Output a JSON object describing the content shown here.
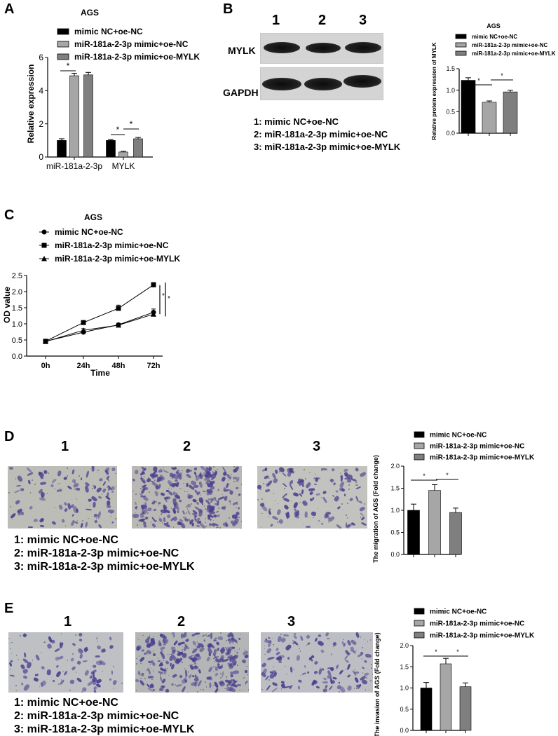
{
  "panels": {
    "a": {
      "letter": "A"
    },
    "b": {
      "letter": "B",
      "lanes": [
        "1",
        "2",
        "3"
      ],
      "row_labels": [
        "MYLK",
        "GAPDH"
      ],
      "key": [
        "1:  mimic NC+oe-NC",
        "2:  miR-181a-2-3p mimic+oe-NC",
        "3:  miR-181a-2-3p mimic+oe-MYLK"
      ]
    },
    "c": {
      "letter": "C"
    },
    "d": {
      "letter": "D",
      "images": [
        "1",
        "2",
        "3"
      ],
      "key": [
        "1:  mimic NC+oe-NC",
        "2:  miR-181a-2-3p mimic+oe-NC",
        "3:  miR-181a-2-3p mimic+oe-MYLK"
      ]
    },
    "e": {
      "letter": "E",
      "images": [
        "1",
        "2",
        "3"
      ],
      "key": [
        "1:  mimic NC+oe-NC",
        "2:  miR-181a-2-3p mimic+oe-NC",
        "3:  miR-181a-2-3p mimic+oe-MYLK"
      ]
    }
  },
  "colors": {
    "group1": "#000000",
    "group2": "#a6a6a6",
    "group3": "#7f7f7f",
    "stain": "#4a3f8f"
  },
  "chart_data": [
    {
      "id": "A",
      "type": "bar",
      "title": "AGS",
      "xlabel": "",
      "ylabel": "Relative expression",
      "categories": [
        "miR-181a-2-3p",
        "MYLK"
      ],
      "ylim": [
        0,
        6
      ],
      "yticks": [
        0,
        2,
        4,
        6
      ],
      "series": [
        {
          "name": "mimic NC+oe-NC",
          "values": [
            1.0,
            1.0
          ],
          "errors": [
            0.1,
            0.06
          ]
        },
        {
          "name": "miR-181a-2-3p mimic+oe-NC",
          "values": [
            4.9,
            0.3
          ],
          "errors": [
            0.15,
            0.05
          ]
        },
        {
          "name": "miR-181a-2-3p mimic+oe-MYLK",
          "values": [
            4.95,
            1.1
          ],
          "errors": [
            0.15,
            0.08
          ]
        }
      ],
      "significance": [
        "*",
        "*",
        "*"
      ],
      "legend": "top"
    },
    {
      "id": "B",
      "type": "bar",
      "title": "AGS",
      "xlabel": "",
      "ylabel": "Relative protein expression of MYLK",
      "categories": [
        ""
      ],
      "ylim": [
        0,
        1.5
      ],
      "yticks": [
        0.0,
        0.5,
        1.0,
        1.5
      ],
      "series": [
        {
          "name": "mimic NC+oe-NC",
          "values": [
            1.23
          ],
          "errors": [
            0.06
          ]
        },
        {
          "name": "miR-181a-2-3p mimic+oe-NC",
          "values": [
            0.72
          ],
          "errors": [
            0.03
          ]
        },
        {
          "name": "miR-181a-2-3p mimic+oe-MYLK",
          "values": [
            0.96
          ],
          "errors": [
            0.04
          ]
        }
      ],
      "significance": [
        "*",
        "*"
      ],
      "legend": "top"
    },
    {
      "id": "C",
      "type": "line",
      "title": "AGS",
      "xlabel": "Time",
      "ylabel": "OD value",
      "x": [
        "0h",
        "24h",
        "48h",
        "72h"
      ],
      "ylim": [
        0,
        2.5
      ],
      "yticks": [
        0.0,
        0.5,
        1.0,
        1.5,
        2.0,
        2.5
      ],
      "series": [
        {
          "name": "mimic NC+oe-NC",
          "marker": "circle",
          "values": [
            0.46,
            0.74,
            0.97,
            1.36
          ],
          "errors": [
            0.03,
            0.04,
            0.05,
            0.1
          ]
        },
        {
          "name": "miR-181a-2-3p mimic+oe-NC",
          "marker": "square",
          "values": [
            0.46,
            1.04,
            1.48,
            2.21
          ],
          "errors": [
            0.03,
            0.05,
            0.1,
            0.07
          ]
        },
        {
          "name": "miR-181a-2-3p mimic+oe-MYLK",
          "marker": "triangle",
          "values": [
            0.45,
            0.8,
            0.96,
            1.3
          ],
          "errors": [
            0.03,
            0.05,
            0.05,
            0.05
          ]
        }
      ],
      "significance": [
        "*",
        "*"
      ],
      "legend": "top-left"
    },
    {
      "id": "D",
      "type": "bar",
      "title": "",
      "xlabel": "",
      "ylabel": "The migration of AGS (Fold change)",
      "categories": [
        ""
      ],
      "ylim": [
        0,
        2.0
      ],
      "yticks": [
        0.0,
        0.5,
        1.0,
        1.5,
        2.0
      ],
      "series": [
        {
          "name": "mimic NC+oe-NC",
          "values": [
            1.0
          ],
          "errors": [
            0.14
          ]
        },
        {
          "name": "miR-181a-2-3p mimic+oe-NC",
          "values": [
            1.45
          ],
          "errors": [
            0.13
          ]
        },
        {
          "name": "miR-181a-2-3p mimic+oe-MYLK",
          "values": [
            0.95
          ],
          "errors": [
            0.1
          ]
        }
      ],
      "significance": [
        "*",
        "*"
      ],
      "legend": "top"
    },
    {
      "id": "E",
      "type": "bar",
      "title": "",
      "xlabel": "",
      "ylabel": "The invasion of AGS (Fold change)",
      "categories": [
        ""
      ],
      "ylim": [
        0,
        2.0
      ],
      "yticks": [
        0.0,
        0.5,
        1.0,
        1.5,
        2.0
      ],
      "series": [
        {
          "name": "mimic NC+oe-NC",
          "values": [
            1.0
          ],
          "errors": [
            0.13
          ]
        },
        {
          "name": "miR-181a-2-3p mimic+oe-NC",
          "values": [
            1.57
          ],
          "errors": [
            0.13
          ]
        },
        {
          "name": "miR-181a-2-3p mimic+oe-MYLK",
          "values": [
            1.03
          ],
          "errors": [
            0.09
          ]
        }
      ],
      "significance": [
        "*",
        "*"
      ],
      "legend": "top"
    }
  ]
}
